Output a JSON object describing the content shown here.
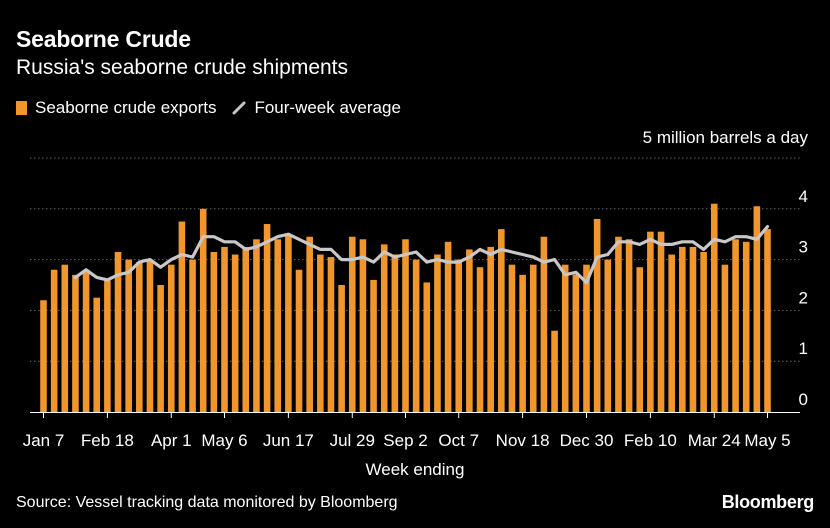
{
  "header": {
    "title": "Seaborne Crude",
    "subtitle": "Russia's seaborne crude shipments"
  },
  "legend": {
    "bar_label": "Seaborne crude exports",
    "line_label": "Four-week average"
  },
  "axis": {
    "units_label": "5 million barrels a day",
    "x_title": "Week ending"
  },
  "footer": {
    "source": "Source: Vessel tracking data monitored by Bloomberg",
    "brand": "Bloomberg"
  },
  "colors": {
    "bar": "#f0962d",
    "line": "#c8c8c8",
    "grid": "#666666",
    "background": "#000000"
  },
  "chart_data": {
    "type": "bar",
    "ylim": [
      0,
      5
    ],
    "y_ticks": [
      0,
      1,
      2,
      3,
      4,
      5
    ],
    "grid": "horizontal dotted",
    "legend_position": "top-left",
    "x_tick_labels": [
      "Jan 7",
      "Feb 18",
      "Apr 1",
      "May 6",
      "Jun 17",
      "Jul 29",
      "Sep 2",
      "Oct 7",
      "Nov 18",
      "Dec 30",
      "Feb 10",
      "Mar 24",
      "May 5"
    ],
    "x_tick_indices": [
      0,
      6,
      12,
      17,
      23,
      29,
      34,
      39,
      45,
      51,
      57,
      63,
      68
    ],
    "series": [
      {
        "name": "Seaborne crude exports",
        "type": "bar",
        "values": [
          2.2,
          2.8,
          2.9,
          2.7,
          2.8,
          2.25,
          2.6,
          3.15,
          3.0,
          2.95,
          3.0,
          2.5,
          2.9,
          3.75,
          3.0,
          4.0,
          3.15,
          3.25,
          3.1,
          3.25,
          3.4,
          3.7,
          3.4,
          3.5,
          2.8,
          3.45,
          3.1,
          3.05,
          2.5,
          3.45,
          3.4,
          2.6,
          3.3,
          3.1,
          3.4,
          3.0,
          2.55,
          3.1,
          3.35,
          3.0,
          3.2,
          2.85,
          3.25,
          3.6,
          2.9,
          2.7,
          2.9,
          3.45,
          1.6,
          2.9,
          2.7,
          2.9,
          3.8,
          3.0,
          3.45,
          3.4,
          2.85,
          3.55,
          3.55,
          3.1,
          3.25,
          3.25,
          3.15,
          4.1,
          2.9,
          3.4,
          3.35,
          4.05,
          3.6
        ],
        "color": "#f0962d"
      },
      {
        "name": "Four-week average",
        "type": "line",
        "values": [
          null,
          null,
          null,
          2.65,
          2.8,
          2.65,
          2.6,
          2.7,
          2.75,
          2.95,
          3.0,
          2.85,
          3.0,
          3.1,
          3.05,
          3.45,
          3.45,
          3.35,
          3.35,
          3.2,
          3.25,
          3.35,
          3.45,
          3.5,
          3.4,
          3.3,
          3.2,
          3.2,
          3.0,
          3.0,
          3.05,
          2.95,
          3.15,
          3.05,
          3.1,
          3.15,
          2.95,
          3.0,
          2.95,
          2.95,
          3.05,
          3.2,
          3.1,
          3.2,
          3.15,
          3.1,
          3.05,
          2.95,
          3.0,
          2.7,
          2.75,
          2.55,
          3.05,
          3.1,
          3.35,
          3.35,
          3.3,
          3.4,
          3.3,
          3.3,
          3.35,
          3.35,
          3.2,
          3.4,
          3.35,
          3.45,
          3.45,
          3.4,
          3.65
        ],
        "color": "#c8c8c8"
      }
    ]
  }
}
